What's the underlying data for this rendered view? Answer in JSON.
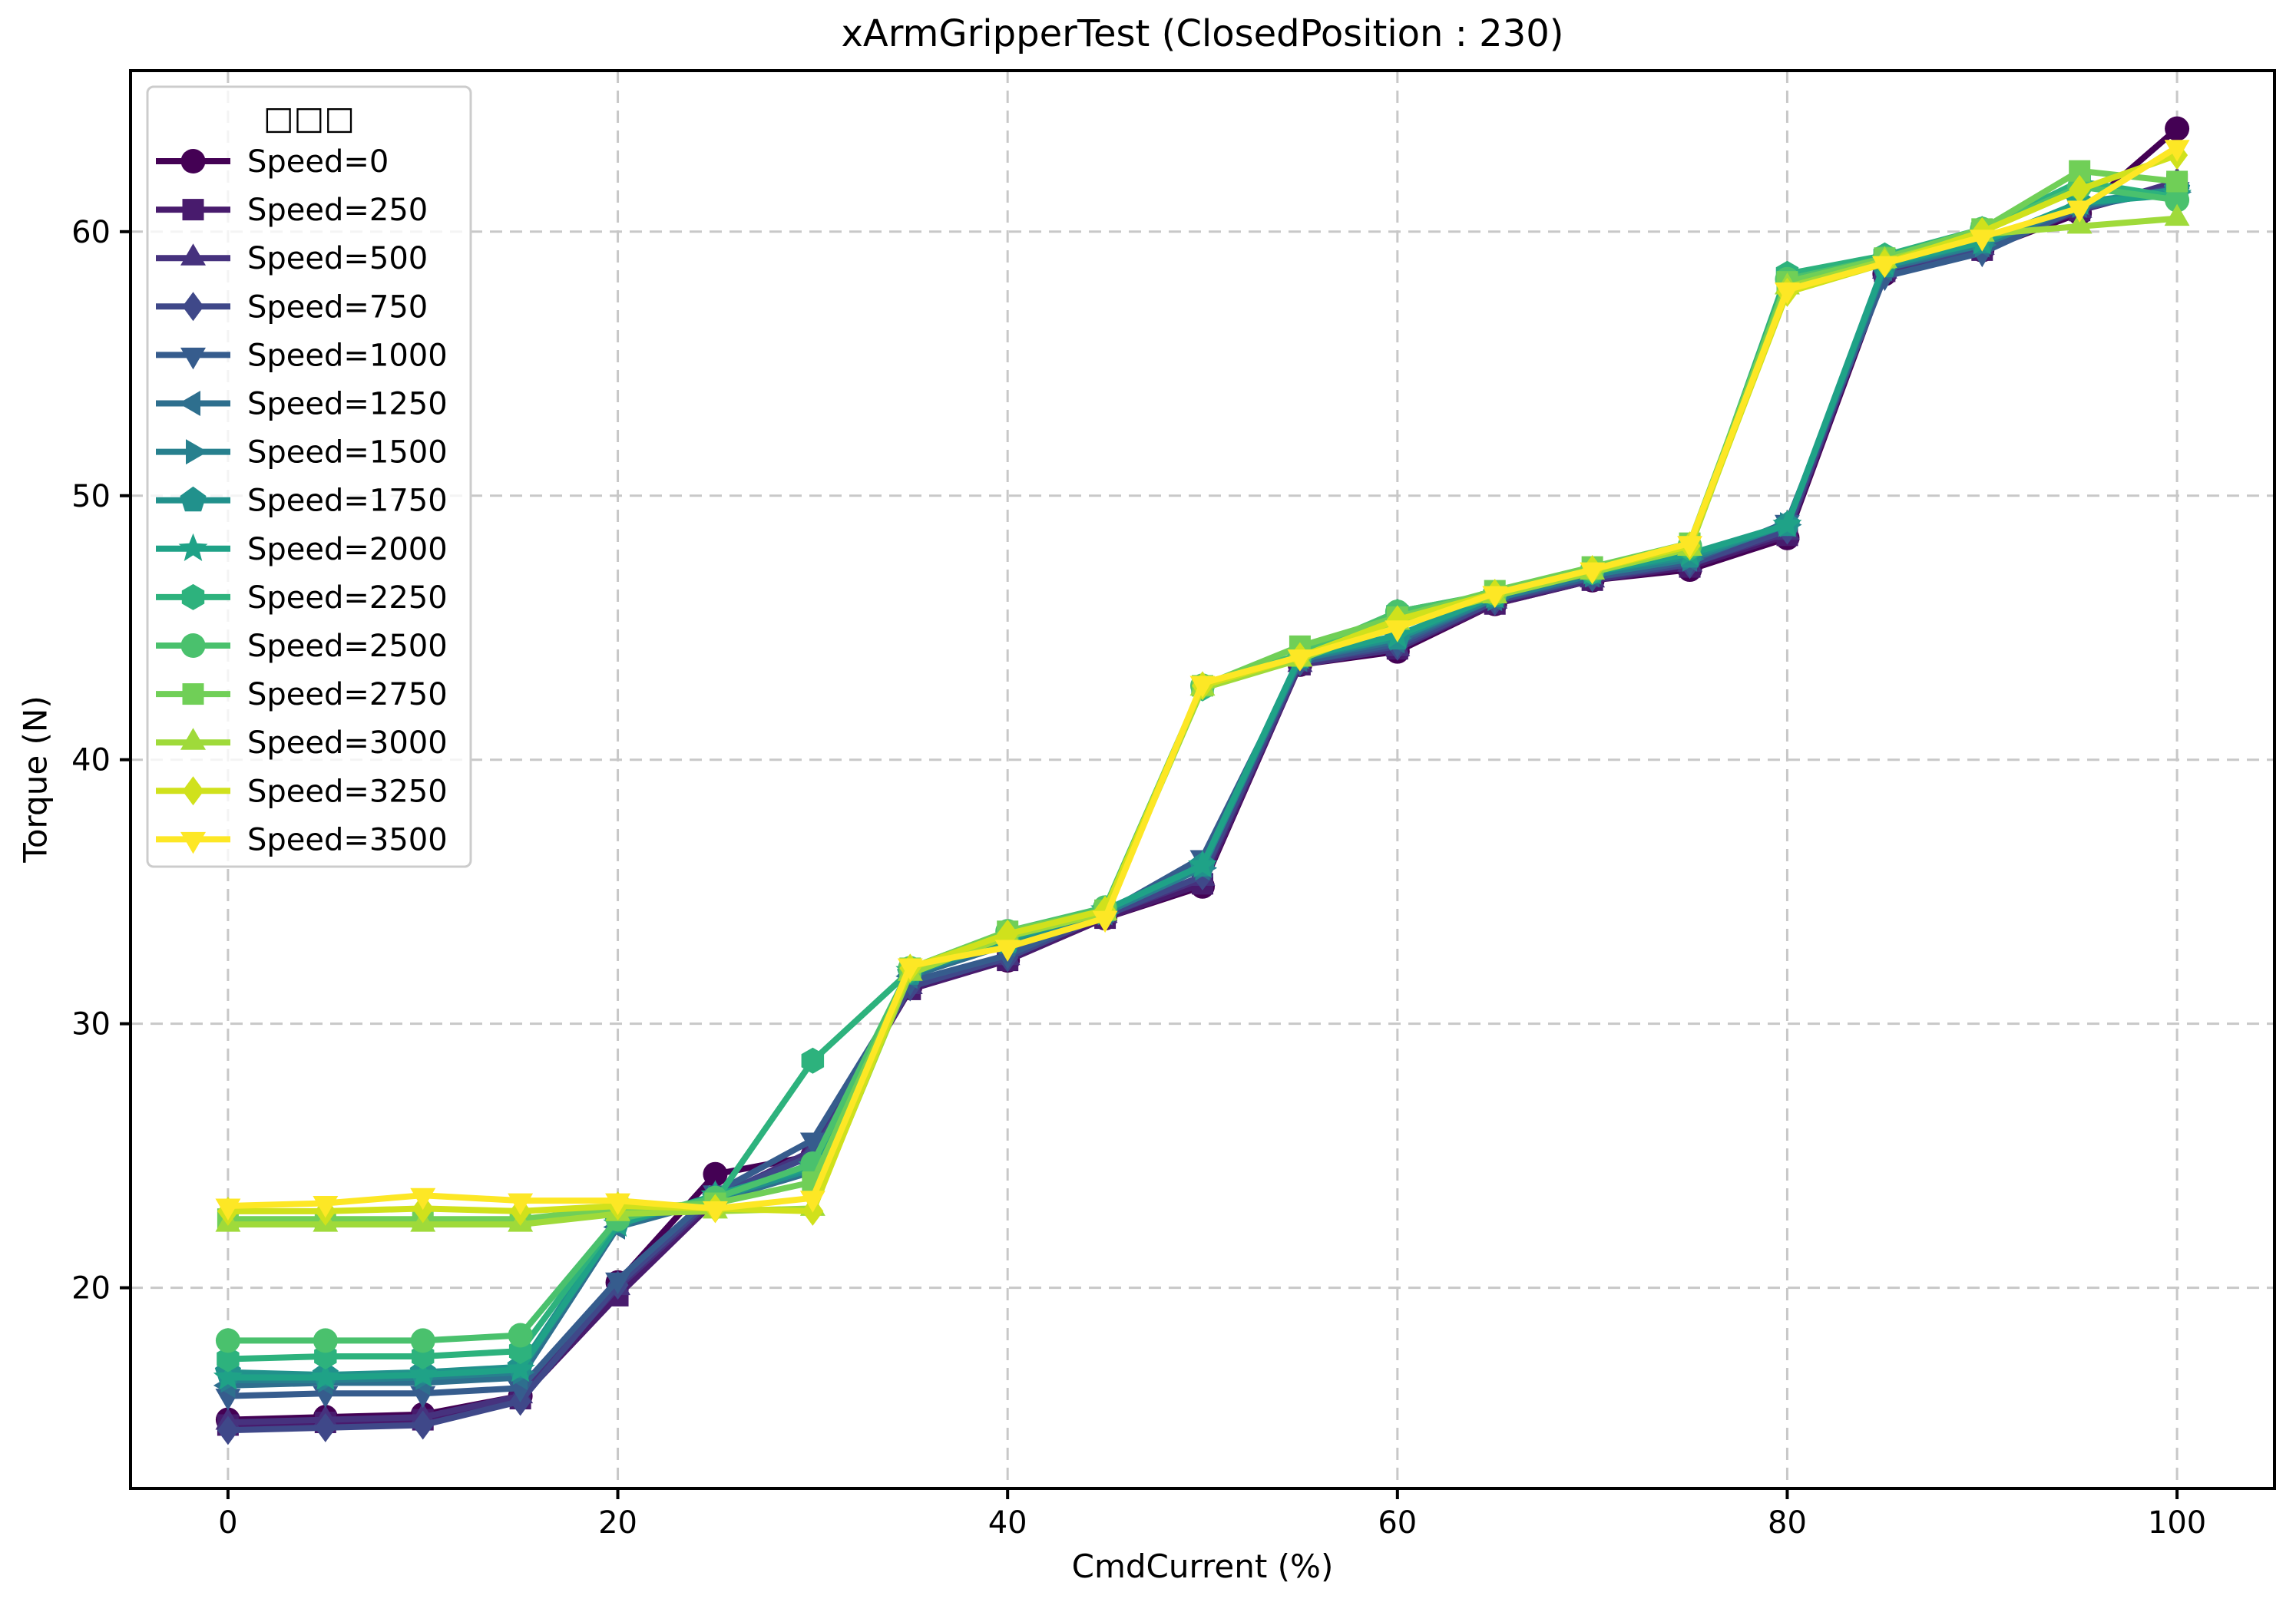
{
  "chart_data": {
    "type": "line",
    "title": "xArmGripperTest (ClosedPosition : 230)",
    "xlabel": "CmdCurrent (%)",
    "ylabel": "Torque (N)",
    "legend_title": "□□□",
    "legend_position": "upper left",
    "grid": true,
    "grid_style": "dashed",
    "grid_color": "#c8c8c8",
    "background_color": "#ffffff",
    "spine_color": "#000000",
    "xlim": [
      -5,
      105
    ],
    "ylim": [
      12.4,
      66.1
    ],
    "xticks": [
      0,
      20,
      40,
      60,
      80,
      100
    ],
    "yticks": [
      20,
      30,
      40,
      50,
      60
    ],
    "x": [
      0,
      5,
      10,
      15,
      20,
      25,
      30,
      35,
      40,
      45,
      50,
      55,
      60,
      65,
      70,
      75,
      80,
      85,
      90,
      95,
      100
    ],
    "series": [
      {
        "name": "Speed=0",
        "color": "#440154",
        "marker": "circle",
        "values": [
          15.0,
          15.1,
          15.2,
          15.9,
          20.2,
          24.3,
          25.0,
          31.4,
          32.4,
          34.0,
          35.2,
          43.6,
          44.1,
          45.9,
          46.8,
          47.2,
          48.4,
          58.4,
          59.3,
          60.7,
          63.9
        ]
      },
      {
        "name": "Speed=250",
        "color": "#481b6d",
        "marker": "square",
        "values": [
          14.8,
          14.9,
          15.0,
          15.8,
          19.7,
          23.3,
          25.1,
          31.3,
          32.4,
          34.0,
          35.3,
          43.6,
          44.2,
          45.9,
          46.8,
          47.3,
          48.5,
          58.5,
          59.3,
          60.8,
          61.8
        ]
      },
      {
        "name": "Speed=500",
        "color": "#46327e",
        "marker": "triangle-up",
        "values": [
          14.9,
          15.0,
          15.1,
          15.9,
          20.0,
          23.4,
          25.2,
          31.4,
          32.5,
          34.1,
          35.5,
          43.6,
          44.2,
          46.0,
          46.8,
          47.4,
          48.6,
          58.5,
          59.4,
          60.8,
          61.9
        ]
      },
      {
        "name": "Speed=750",
        "color": "#3f4889",
        "marker": "diamond",
        "values": [
          14.6,
          14.7,
          14.8,
          15.7,
          20.1,
          23.5,
          25.0,
          31.4,
          32.5,
          34.1,
          35.6,
          43.7,
          44.3,
          46.0,
          46.9,
          47.4,
          48.7,
          58.6,
          59.4,
          60.9,
          61.7
        ]
      },
      {
        "name": "Speed=1000",
        "color": "#365c8d",
        "marker": "triangle-down",
        "values": [
          15.9,
          16.0,
          16.0,
          16.2,
          20.3,
          23.6,
          25.6,
          31.6,
          32.6,
          34.2,
          36.3,
          43.7,
          44.4,
          46.1,
          46.9,
          47.5,
          49.0,
          58.3,
          59.2,
          60.9,
          61.6
        ]
      },
      {
        "name": "Speed=1250",
        "color": "#2e6f8e",
        "marker": "triangle-left",
        "values": [
          16.3,
          16.4,
          16.4,
          16.6,
          22.3,
          23.3,
          24.4,
          31.8,
          33.0,
          34.2,
          35.9,
          43.8,
          44.5,
          46.1,
          47.0,
          47.6,
          48.9,
          58.6,
          59.5,
          61.0,
          61.5
        ]
      },
      {
        "name": "Speed=1500",
        "color": "#27808e",
        "marker": "triangle-right",
        "values": [
          16.5,
          16.5,
          16.6,
          16.8,
          22.4,
          23.4,
          24.5,
          31.9,
          33.1,
          34.2,
          35.9,
          43.8,
          44.6,
          46.1,
          47.0,
          47.6,
          48.9,
          58.7,
          59.5,
          61.0,
          61.5
        ]
      },
      {
        "name": "Speed=1750",
        "color": "#21918c",
        "marker": "pentagon",
        "values": [
          16.8,
          16.7,
          16.8,
          17.0,
          22.5,
          23.4,
          24.5,
          31.9,
          33.1,
          34.3,
          36.0,
          43.9,
          44.6,
          46.2,
          47.1,
          47.7,
          48.9,
          58.7,
          59.6,
          61.1,
          61.6
        ]
      },
      {
        "name": "Speed=2000",
        "color": "#1fa287",
        "marker": "star",
        "values": [
          16.6,
          16.6,
          16.7,
          16.9,
          22.4,
          23.5,
          24.6,
          32.0,
          33.2,
          34.3,
          36.0,
          43.9,
          44.7,
          46.2,
          47.1,
          47.8,
          48.9,
          58.8,
          59.6,
          61.1,
          61.4
        ]
      },
      {
        "name": "Speed=2250",
        "color": "#2db27d",
        "marker": "hexagon",
        "values": [
          17.3,
          17.4,
          17.4,
          17.6,
          22.6,
          23.3,
          28.6,
          32.0,
          33.4,
          34.3,
          42.7,
          43.9,
          45.6,
          46.3,
          47.1,
          48.0,
          58.4,
          59.1,
          60.1,
          61.9,
          61.3
        ]
      },
      {
        "name": "Speed=2500",
        "color": "#4ac16d",
        "marker": "circle",
        "values": [
          18.0,
          18.0,
          18.0,
          18.2,
          22.6,
          23.4,
          24.7,
          32.1,
          33.5,
          34.4,
          42.8,
          44.0,
          45.6,
          46.3,
          47.2,
          48.1,
          58.2,
          59.0,
          60.1,
          61.7,
          61.2
        ]
      },
      {
        "name": "Speed=2750",
        "color": "#70cf57",
        "marker": "square",
        "values": [
          22.6,
          22.6,
          22.6,
          22.6,
          23.0,
          23.2,
          24.0,
          32.1,
          33.5,
          34.3,
          42.8,
          44.3,
          45.4,
          46.4,
          47.3,
          48.2,
          58.1,
          59.0,
          60.1,
          62.3,
          61.9
        ]
      },
      {
        "name": "Speed=3000",
        "color": "#9fda3a",
        "marker": "triangle-up",
        "values": [
          22.4,
          22.4,
          22.4,
          22.4,
          22.8,
          22.9,
          23.0,
          31.9,
          33.3,
          34.2,
          42.7,
          43.8,
          45.2,
          46.2,
          47.1,
          48.0,
          57.9,
          58.9,
          59.9,
          60.2,
          60.5
        ]
      },
      {
        "name": "Speed=3250",
        "color": "#d0e11c",
        "marker": "diamond",
        "values": [
          22.9,
          22.9,
          23.0,
          22.9,
          23.1,
          23.0,
          22.9,
          32.1,
          33.4,
          34.3,
          42.8,
          43.9,
          45.3,
          46.3,
          47.2,
          48.1,
          57.7,
          58.8,
          60.0,
          61.6,
          62.9
        ]
      },
      {
        "name": "Speed=3500",
        "color": "#fde725",
        "marker": "triangle-down",
        "values": [
          23.1,
          23.2,
          23.5,
          23.3,
          23.3,
          23.0,
          23.4,
          32.2,
          32.9,
          34.0,
          42.9,
          43.9,
          45.0,
          46.3,
          47.2,
          48.2,
          57.8,
          58.8,
          59.8,
          60.9,
          63.2
        ]
      }
    ]
  }
}
